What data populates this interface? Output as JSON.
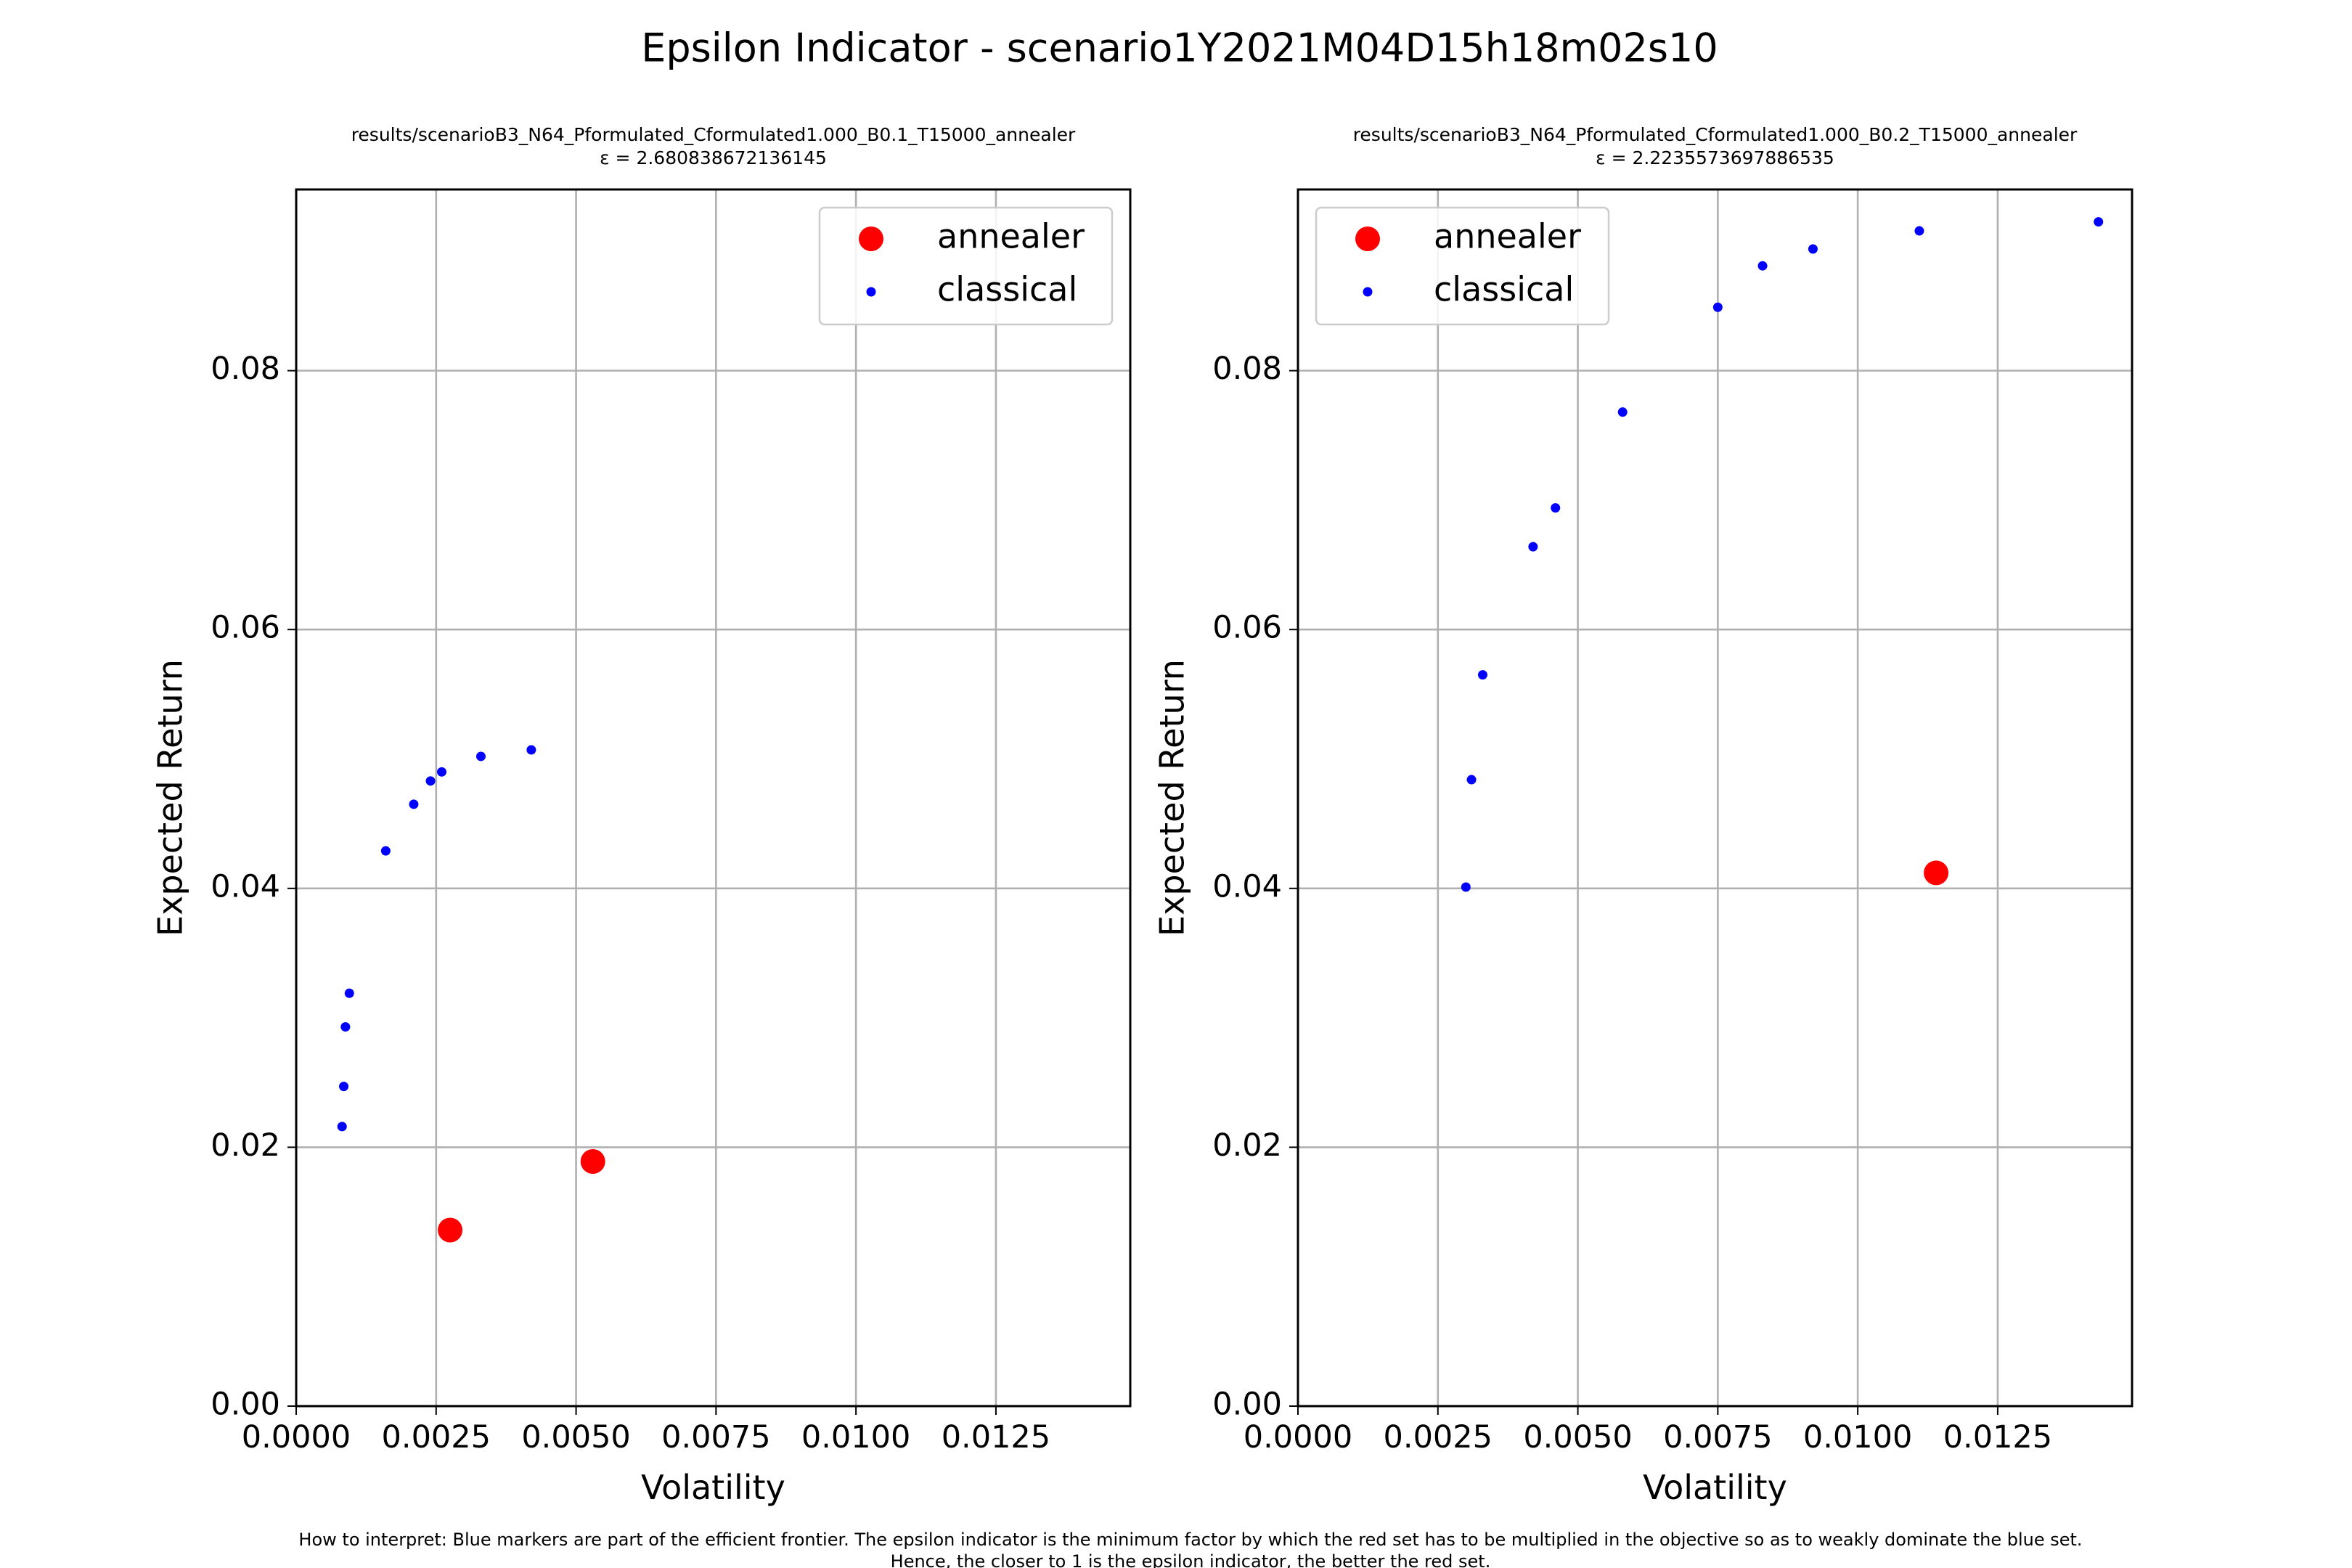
{
  "figure": {
    "suptitle": "Epsilon Indicator - scenario1Y2021M04D15h18m02s10",
    "footnote_line1": "How to interpret: Blue markers are part of the efficient frontier. The epsilon indicator is the minimum factor by which the red set has to be multiplied in the objective so as to weakly dominate the blue set.",
    "footnote_line2": "Hence, the closer to 1 is the epsilon indicator, the better the red set.",
    "colors": {
      "annealer": "#ff0000",
      "classical": "#0000ff",
      "grid": "#b0b0b0",
      "axes": "#000000"
    }
  },
  "chart_data": [
    {
      "type": "scatter",
      "title_line1": "results/scenarioB3_N64_Pformulated_Cformulated1.000_B0.1_T15000_annealer",
      "title_line2": "ε = 2.680838672136145",
      "xlabel": "Volatility",
      "ylabel": "Expected Return",
      "xlim": [
        0.0,
        0.0149
      ],
      "ylim": [
        0.0,
        0.094
      ],
      "xticks": [
        0.0,
        0.0025,
        0.005,
        0.0075,
        0.01,
        0.0125
      ],
      "xtick_labels": [
        "0.0000",
        "0.0025",
        "0.0050",
        "0.0075",
        "0.0100",
        "0.0125"
      ],
      "yticks": [
        0.0,
        0.02,
        0.04,
        0.06,
        0.08
      ],
      "ytick_labels": [
        "0.00",
        "0.02",
        "0.04",
        "0.06",
        "0.08"
      ],
      "grid": true,
      "legend": {
        "placement": "upper right",
        "entries": [
          "annealer",
          "classical"
        ]
      },
      "series": [
        {
          "name": "annealer",
          "marker": "large",
          "points": [
            [
              0.00275,
              0.0136
            ],
            [
              0.0053,
              0.0189
            ]
          ]
        },
        {
          "name": "classical",
          "marker": "small",
          "points": [
            [
              0.00082,
              0.0216
            ],
            [
              0.00085,
              0.0247
            ],
            [
              0.00088,
              0.0293
            ],
            [
              0.00095,
              0.0319
            ],
            [
              0.0016,
              0.0429
            ],
            [
              0.0021,
              0.0465
            ],
            [
              0.0024,
              0.0483
            ],
            [
              0.0026,
              0.049
            ],
            [
              0.0033,
              0.0502
            ],
            [
              0.0042,
              0.0507
            ]
          ]
        }
      ]
    },
    {
      "type": "scatter",
      "title_line1": "results/scenarioB3_N64_Pformulated_Cformulated1.000_B0.2_T15000_annealer",
      "title_line2": "ε = 2.2235573697886535",
      "xlabel": "Volatility",
      "ylabel": "Expected Return",
      "xlim": [
        0.0,
        0.0149
      ],
      "ylim": [
        0.0,
        0.094
      ],
      "xticks": [
        0.0,
        0.0025,
        0.005,
        0.0075,
        0.01,
        0.0125
      ],
      "xtick_labels": [
        "0.0000",
        "0.0025",
        "0.0050",
        "0.0075",
        "0.0100",
        "0.0125"
      ],
      "yticks": [
        0.0,
        0.02,
        0.04,
        0.06,
        0.08
      ],
      "ytick_labels": [
        "0.00",
        "0.02",
        "0.04",
        "0.06",
        "0.08"
      ],
      "grid": true,
      "legend": {
        "placement": "upper left",
        "entries": [
          "annealer",
          "classical"
        ]
      },
      "series": [
        {
          "name": "annealer",
          "marker": "large",
          "points": [
            [
              0.0114,
              0.0412
            ]
          ]
        },
        {
          "name": "classical",
          "marker": "small",
          "points": [
            [
              0.003,
              0.0401
            ],
            [
              0.0031,
              0.0484
            ],
            [
              0.0033,
              0.0565
            ],
            [
              0.0042,
              0.0664
            ],
            [
              0.0046,
              0.0694
            ],
            [
              0.0058,
              0.0768
            ],
            [
              0.0075,
              0.0849
            ],
            [
              0.0083,
              0.0881
            ],
            [
              0.0092,
              0.0894
            ],
            [
              0.0111,
              0.0908
            ],
            [
              0.0143,
              0.0915
            ]
          ]
        }
      ]
    }
  ]
}
